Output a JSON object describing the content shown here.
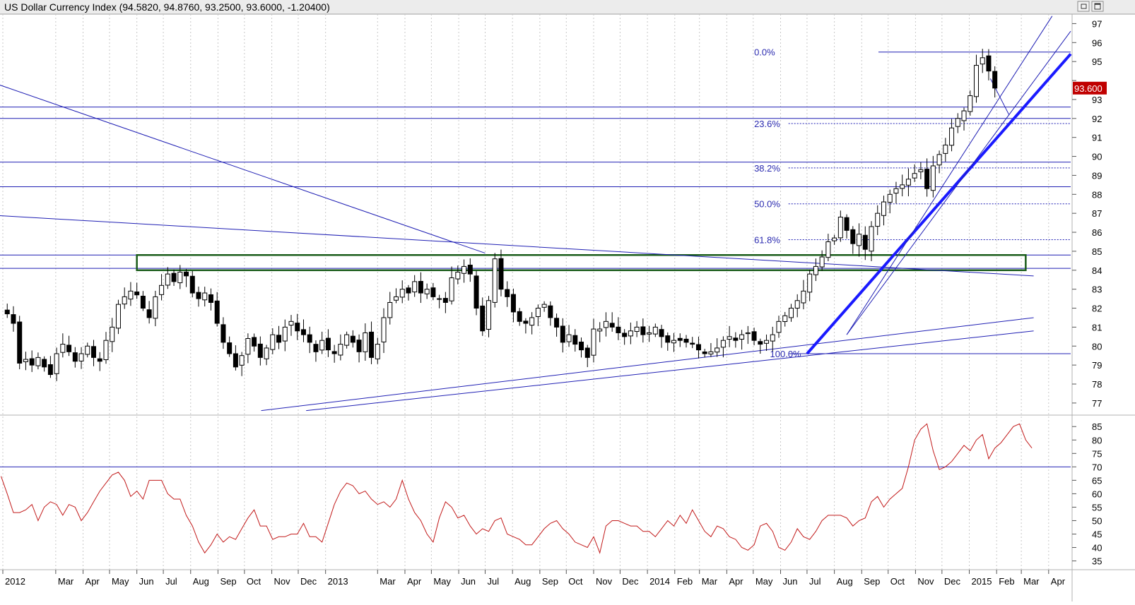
{
  "window": {
    "title": "US Dollar Currency Index (94.5820, 94.8760, 93.2500, 93.6000, -1.20400)",
    "buttons": [
      "restore",
      "maximize"
    ]
  },
  "colors": {
    "grid": "#c8c8c8",
    "trendline": "#1f1fb4",
    "fib_text": "#2b2bb0",
    "rsi_line": "#c21a1a",
    "box": "#1a5c1a",
    "bull": "#ffffff",
    "bear": "#000000",
    "price_tag_bg": "#c00000",
    "price_tag_text": "#ffffff"
  },
  "chart_data": [
    {
      "type": "candlestick",
      "title": "US Dollar Currency Index (94.5820, 94.8760, 93.2500, 93.6000, -1.20400)",
      "period": "weekly",
      "ylim": [
        76.4,
        97.5
      ],
      "y_ticks": [
        77,
        78,
        79,
        80,
        81,
        82,
        83,
        84,
        85,
        86,
        87,
        88,
        89,
        90,
        91,
        92,
        93,
        94,
        95,
        96,
        97
      ],
      "y_tick_labels_shown": [
        "77",
        "78",
        "79",
        "80",
        "81",
        "82",
        "83",
        "84",
        "85",
        "86",
        "87",
        "88",
        "89",
        "90",
        "91",
        "92",
        "93",
        "95",
        "96",
        "97"
      ],
      "last_price_label": "93.600",
      "last_price": 93.6,
      "x_labels": [
        {
          "label": "2012",
          "date": "2012-01-01"
        },
        {
          "label": "Mar",
          "date": "2012-03-01"
        },
        {
          "label": "Apr",
          "date": "2012-04-01"
        },
        {
          "label": "May",
          "date": "2012-05-01"
        },
        {
          "label": "Jun",
          "date": "2012-06-01"
        },
        {
          "label": "Jul",
          "date": "2012-07-01"
        },
        {
          "label": "Aug",
          "date": "2012-08-01"
        },
        {
          "label": "Sep",
          "date": "2012-09-01"
        },
        {
          "label": "Oct",
          "date": "2012-10-01"
        },
        {
          "label": "Nov",
          "date": "2012-11-01"
        },
        {
          "label": "Dec",
          "date": "2012-12-01"
        },
        {
          "label": "2013",
          "date": "2013-01-01"
        },
        {
          "label": "Mar",
          "date": "2013-03-01"
        },
        {
          "label": "Apr",
          "date": "2013-04-01"
        },
        {
          "label": "May",
          "date": "2013-05-01"
        },
        {
          "label": "Jun",
          "date": "2013-06-01"
        },
        {
          "label": "Jul",
          "date": "2013-07-01"
        },
        {
          "label": "Aug",
          "date": "2013-08-01"
        },
        {
          "label": "Sep",
          "date": "2013-09-01"
        },
        {
          "label": "Oct",
          "date": "2013-10-01"
        },
        {
          "label": "Nov",
          "date": "2013-11-01"
        },
        {
          "label": "Dec",
          "date": "2013-12-01"
        },
        {
          "label": "2014",
          "date": "2014-01-01"
        },
        {
          "label": "Feb",
          "date": "2014-02-01"
        },
        {
          "label": "Mar",
          "date": "2014-03-01"
        },
        {
          "label": "Apr",
          "date": "2014-04-01"
        },
        {
          "label": "May",
          "date": "2014-05-01"
        },
        {
          "label": "Jun",
          "date": "2014-06-01"
        },
        {
          "label": "Jul",
          "date": "2014-07-01"
        },
        {
          "label": "Aug",
          "date": "2014-08-01"
        },
        {
          "label": "Sep",
          "date": "2014-09-01"
        },
        {
          "label": "Oct",
          "date": "2014-10-01"
        },
        {
          "label": "Nov",
          "date": "2014-11-01"
        },
        {
          "label": "Dec",
          "date": "2014-12-01"
        },
        {
          "label": "2015",
          "date": "2015-01-01"
        },
        {
          "label": "Feb",
          "date": "2015-02-01"
        },
        {
          "label": "Mar",
          "date": "2015-03-01"
        },
        {
          "label": "Apr",
          "date": "2015-04-01"
        }
      ],
      "x_range": [
        "2012-01-01",
        "2015-04-26"
      ],
      "close_series": [
        81.7,
        81.2,
        79.1,
        79.3,
        79.0,
        79.4,
        78.9,
        78.5,
        79.6,
        80.1,
        79.7,
        79.2,
        79.6,
        80.0,
        79.4,
        79.2,
        80.3,
        81.0,
        82.2,
        82.6,
        82.9,
        82.7,
        82.0,
        81.5,
        82.6,
        83.2,
        83.8,
        83.4,
        83.9,
        83.7,
        82.8,
        82.5,
        82.8,
        82.3,
        81.2,
        80.2,
        79.6,
        78.9,
        79.5,
        80.4,
        80.0,
        79.4,
        79.9,
        80.6,
        80.2,
        81.0,
        81.3,
        80.8,
        80.6,
        80.2,
        79.7,
        80.3,
        79.8,
        79.6,
        80.1,
        80.6,
        80.2,
        79.7,
        80.7,
        79.4,
        80.1,
        81.5,
        82.3,
        82.6,
        83.0,
        82.8,
        83.4,
        82.8,
        83.0,
        82.6,
        82.5,
        82.3,
        83.6,
        83.9,
        84.2,
        83.8,
        82.0,
        80.8,
        82.4,
        84.6,
        83.0,
        82.6,
        81.8,
        81.3,
        81.2,
        81.5,
        82.0,
        82.2,
        81.5,
        81.0,
        80.2,
        80.6,
        80.1,
        79.8,
        79.4,
        80.9,
        80.9,
        81.3,
        81.0,
        80.7,
        80.5,
        80.8,
        81.0,
        80.6,
        80.7,
        81.0,
        80.5,
        80.2,
        80.3,
        80.3,
        80.2,
        80.1,
        79.8,
        79.6,
        79.7,
        79.9,
        80.3,
        80.5,
        80.3,
        80.6,
        80.7,
        80.3,
        80.1,
        80.3,
        80.6,
        81.3,
        81.6,
        82.0,
        82.4,
        82.9,
        83.8,
        84.2,
        84.7,
        85.5,
        85.7,
        86.8,
        86.1,
        85.4,
        85.9,
        85.1,
        86.3,
        87.0,
        87.6,
        88.0,
        88.3,
        88.5,
        88.8,
        89.1,
        89.3,
        88.3,
        89.5,
        90.1,
        90.6,
        91.5,
        92.0,
        92.4,
        93.2,
        94.8,
        95.2,
        94.5,
        93.6
      ],
      "fibonacci": {
        "levels": [
          {
            "label": "0.0%",
            "value": 95.5
          },
          {
            "label": "23.6%",
            "value": 91.73
          },
          {
            "label": "38.2%",
            "value": 89.39
          },
          {
            "label": "50.0%",
            "value": 87.5
          },
          {
            "label": "61.8%",
            "value": 85.61
          },
          {
            "label": "100.0%",
            "value": 79.6
          }
        ]
      },
      "horizontal_lines": [
        92.6,
        92.0,
        89.7,
        88.4,
        84.8,
        84.1
      ],
      "rectangle": {
        "from": "2012-06-01",
        "to": "2015-03-06",
        "low": 84.0,
        "high": 84.8
      },
      "trendlines": [
        {
          "from": [
            "2011-12-20",
            93.9
          ],
          "to": [
            "2013-07-01",
            84.9
          ],
          "style": "thin"
        },
        {
          "from": [
            "2011-12-20",
            86.9
          ],
          "to": [
            "2015-03-15",
            83.7
          ],
          "style": "thin"
        },
        {
          "from": [
            "2012-10-20",
            76.6
          ],
          "to": [
            "2015-03-15",
            81.5
          ],
          "style": "thin"
        },
        {
          "from": [
            "2012-12-10",
            76.6
          ],
          "to": [
            "2015-03-15",
            80.8
          ],
          "style": "thin"
        },
        {
          "from": [
            "2014-07-01",
            79.6
          ],
          "to": [
            "2015-04-26",
            95.4
          ],
          "style": "bold"
        },
        {
          "from": [
            "2014-08-15",
            80.6
          ],
          "to": [
            "2015-04-26",
            96.6
          ],
          "style": "thin"
        },
        {
          "from": [
            "2014-08-15",
            80.6
          ],
          "to": [
            "2015-04-05",
            97.4
          ],
          "style": "thin"
        },
        {
          "from": [
            "2015-01-25",
            94.1
          ],
          "to": [
            "2015-02-15",
            92.2
          ],
          "style": "thin"
        }
      ]
    },
    {
      "type": "line",
      "name": "RSI",
      "ylim": [
        32,
        89
      ],
      "y_ticks": [
        35,
        40,
        45,
        50,
        55,
        60,
        65,
        70,
        75,
        80,
        85
      ],
      "overbought_line": 70,
      "values": [
        66.5,
        60,
        53,
        53,
        54,
        56,
        50,
        55,
        57,
        56,
        52,
        56,
        55,
        50,
        53,
        57,
        61,
        64,
        67,
        68,
        65,
        59,
        61,
        58,
        65,
        65,
        65,
        60,
        58,
        58,
        52,
        48,
        42,
        38,
        41,
        45,
        42,
        44,
        43,
        47,
        51,
        54,
        48,
        48,
        43,
        44,
        44,
        45,
        45,
        49,
        44,
        44,
        42,
        49,
        56,
        61,
        64,
        63,
        60,
        61,
        58,
        56,
        57,
        55,
        58,
        65,
        58,
        53,
        50,
        45,
        42,
        51,
        57,
        55,
        51,
        52,
        48,
        45,
        47,
        46,
        50,
        51,
        45,
        44,
        43,
        41,
        41,
        44,
        47,
        49,
        50,
        47,
        45,
        42,
        41,
        40,
        44,
        38,
        48,
        50,
        50,
        49,
        48,
        48,
        46,
        46,
        44,
        47,
        50,
        48,
        52,
        49,
        54,
        50,
        46,
        44,
        48,
        47,
        44,
        43,
        40,
        39,
        41,
        48,
        49,
        46,
        40,
        39,
        42,
        47,
        44,
        43,
        46,
        50,
        52,
        52,
        52,
        51,
        48,
        50,
        51,
        57,
        59,
        55,
        58,
        60,
        62,
        70,
        80,
        84,
        86,
        76,
        69,
        70,
        72,
        75,
        78,
        76,
        80,
        82,
        73,
        77,
        79,
        82,
        85,
        86,
        80,
        77
      ]
    }
  ]
}
